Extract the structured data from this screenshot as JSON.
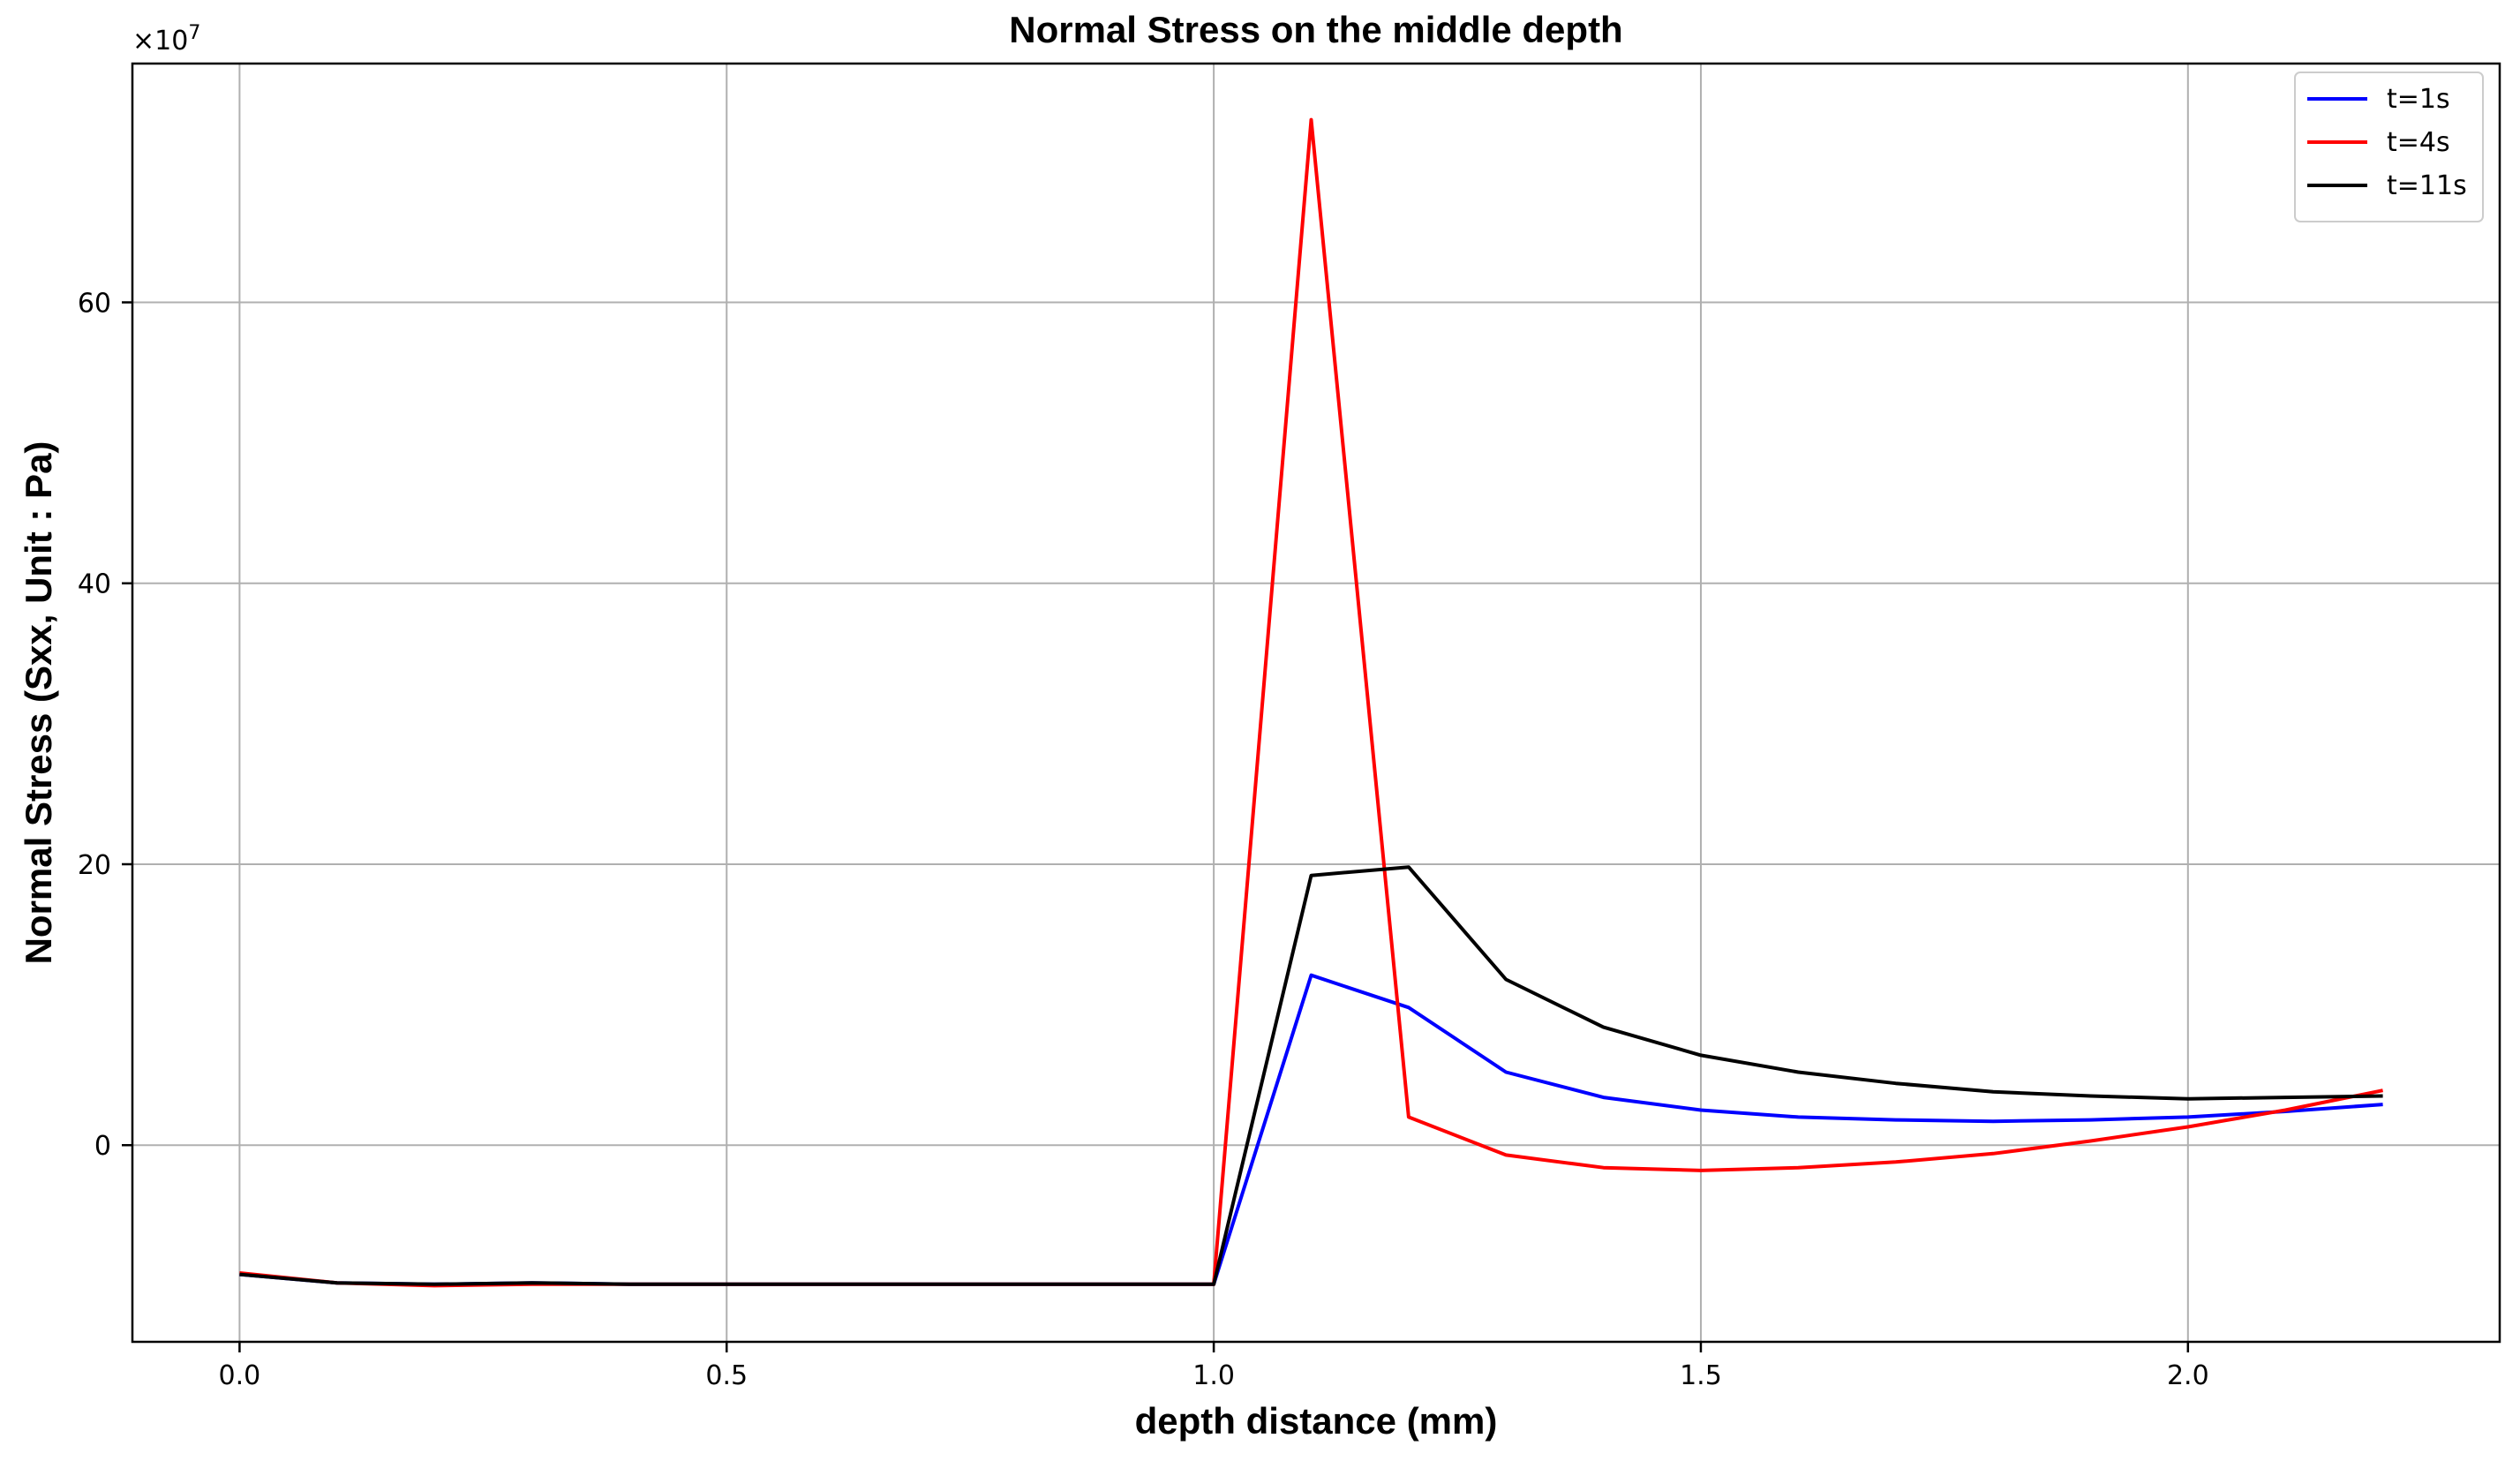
{
  "chart_data": {
    "type": "line",
    "title": "Normal Stress on the middle depth",
    "xlabel": "depth distance (mm)",
    "ylabel": "Normal Stress (Sxx, Unit : Pa)",
    "y_scale_multiplier": "×10",
    "y_scale_exponent": "7",
    "xlim": [
      -0.11,
      2.32
    ],
    "ylim": [
      -14,
      77
    ],
    "x_ticks": [
      0.0,
      0.5,
      1.0,
      1.5,
      2.0
    ],
    "x_tick_labels": [
      "0.0",
      "0.5",
      "1.0",
      "1.5",
      "2.0"
    ],
    "y_ticks": [
      0,
      20,
      40,
      60
    ],
    "y_tick_labels": [
      "0",
      "20",
      "40",
      "60"
    ],
    "grid": true,
    "legend_position": "top-right",
    "x": [
      0.0,
      0.1,
      0.2,
      0.3,
      0.4,
      0.5,
      0.6,
      0.7,
      0.8,
      0.9,
      1.0,
      1.1,
      1.2,
      1.3,
      1.4,
      1.5,
      1.6,
      1.7,
      1.8,
      1.9,
      2.0,
      2.1,
      2.2
    ],
    "series": [
      {
        "name": "t=1s",
        "color": "#0000ff",
        "values": [
          -9.2,
          -9.8,
          -9.9,
          -9.8,
          -9.9,
          -9.9,
          -9.9,
          -9.9,
          -9.9,
          -9.9,
          -9.9,
          12.1,
          9.8,
          5.2,
          3.4,
          2.5,
          2.0,
          1.8,
          1.7,
          1.8,
          2.0,
          2.4,
          2.9
        ]
      },
      {
        "name": "t=4s",
        "color": "#ff0000",
        "values": [
          -9.1,
          -9.8,
          -10.0,
          -9.9,
          -9.9,
          -9.9,
          -9.9,
          -9.9,
          -9.9,
          -9.9,
          -9.9,
          73.0,
          2.0,
          -0.7,
          -1.6,
          -1.8,
          -1.6,
          -1.2,
          -0.6,
          0.3,
          1.3,
          2.5,
          3.9
        ]
      },
      {
        "name": "t=11s",
        "color": "#000000",
        "values": [
          -9.2,
          -9.8,
          -9.9,
          -9.8,
          -9.9,
          -9.9,
          -9.9,
          -9.9,
          -9.9,
          -9.9,
          -9.9,
          19.2,
          19.8,
          11.8,
          8.4,
          6.4,
          5.2,
          4.4,
          3.8,
          3.5,
          3.3,
          3.4,
          3.5
        ]
      }
    ]
  }
}
